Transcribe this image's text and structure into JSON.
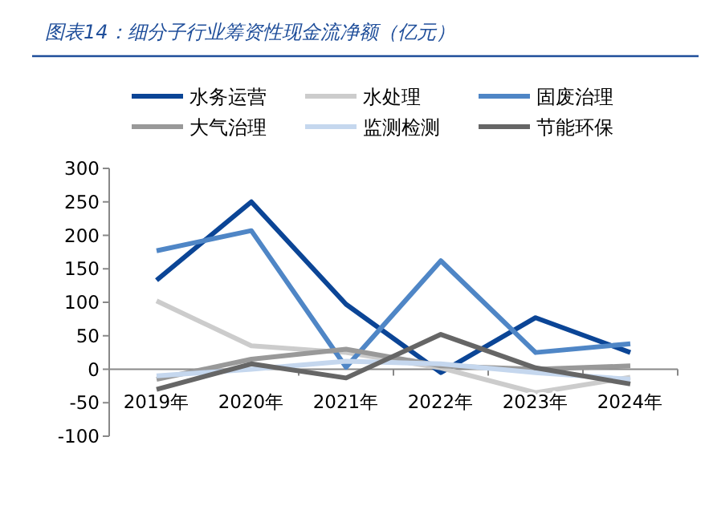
{
  "chart_data": {
    "type": "line",
    "title": "图表14：细分子行业筹资性现金流净额（亿元）",
    "categories": [
      "2019年",
      "2020年",
      "2021年",
      "2022年",
      "2023年",
      "2024年"
    ],
    "series": [
      {
        "name": "水务运营",
        "color": "#0b4596",
        "values": [
          133,
          250,
          97,
          -5,
          77,
          25
        ]
      },
      {
        "name": "水处理",
        "color": "#cccccc",
        "values": [
          102,
          35,
          25,
          2,
          -35,
          -12
        ]
      },
      {
        "name": "固废治理",
        "color": "#4f86c6",
        "values": [
          177,
          207,
          3,
          162,
          25,
          38
        ]
      },
      {
        "name": "大气治理",
        "color": "#999999",
        "values": [
          -15,
          15,
          30,
          5,
          0,
          5
        ]
      },
      {
        "name": "监测检测",
        "color": "#c5d7ee",
        "values": [
          -10,
          0,
          12,
          8,
          -5,
          -15
        ]
      },
      {
        "name": "节能环保",
        "color": "#666666",
        "values": [
          -30,
          8,
          -13,
          52,
          2,
          -22
        ]
      }
    ],
    "ylim": [
      -100,
      300
    ],
    "yticks": [
      -100,
      -50,
      0,
      50,
      100,
      150,
      200,
      250,
      300
    ],
    "grid": false,
    "legend": "top",
    "marker": "none",
    "line_style": "solid"
  }
}
